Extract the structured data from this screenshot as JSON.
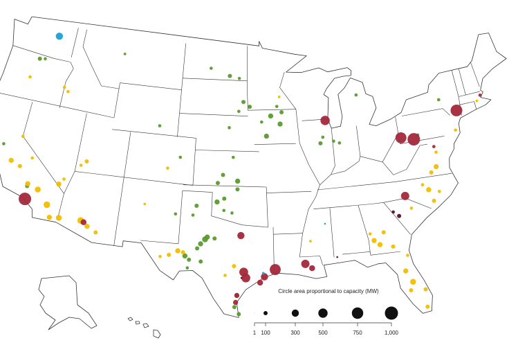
{
  "map": {
    "legend": {
      "title": "Circle area proportional to capacity (MW)",
      "sizes": [
        1,
        100,
        300,
        500,
        750,
        {
          "value": 1000,
          "label": "1,000"
        }
      ]
    },
    "series": [
      {
        "color": "#5b9a2f",
        "lon": [
          -120.5,
          -119.9,
          -111,
          -100.8,
          -98.6,
          -97.5,
          -97,
          -97.5,
          -96.3,
          -93.3,
          -94,
          -93,
          -94.5,
          -92.8,
          -95,
          -98.5,
          -98,
          -99,
          -97.5,
          -99.5,
          -98.8,
          -99.5,
          -97.5,
          -98.8,
          -98,
          -101.5,
          -101.8,
          -100.5,
          -100.9,
          -100.3,
          -99.6,
          -101.2,
          -102.3,
          -101.9,
          -100.8,
          -102,
          -97.6,
          -97.4,
          -97.2,
          -88.8,
          -88.5,
          -87.4,
          -86.8,
          -84.4,
          -106,
          -103.5,
          -118.3,
          -121.7,
          -78.5,
          -75.5,
          -103.5
        ],
        "lat": [
          45.7,
          45.8,
          47.5,
          47,
          46.4,
          46.2,
          44.2,
          43.4,
          43.8,
          43.8,
          43,
          42.3,
          41.3,
          43.3,
          42.5,
          42,
          39.5,
          38,
          37.5,
          37.3,
          36,
          35.7,
          36.8,
          35,
          34.8,
          35.3,
          34.5,
          32.5,
          32.1,
          32.7,
          32.6,
          31.7,
          31,
          30.7,
          30.6,
          30,
          26.8,
          27.8,
          26.2,
          40.5,
          41,
          40.6,
          40.4,
          44.3,
          41.8,
          39.3,
          35,
          38,
          40.2,
          42.8,
          34.5
        ],
        "capacity": [
          100,
          60,
          40,
          60,
          100,
          60,
          100,
          60,
          100,
          60,
          150,
          150,
          150,
          100,
          60,
          60,
          60,
          100,
          150,
          100,
          100,
          150,
          100,
          60,
          60,
          100,
          60,
          200,
          150,
          150,
          100,
          100,
          150,
          100,
          100,
          60,
          100,
          100,
          100,
          100,
          60,
          60,
          60,
          60,
          60,
          60,
          100,
          60,
          60,
          60,
          60
        ]
      },
      {
        "color": "#f2bd00",
        "lon": [
          -120.5,
          -119.5,
          -118.3,
          -117.2,
          -116,
          -115.5,
          -120,
          -118.5,
          -115.3,
          -114.9,
          -114.6,
          -112.5,
          -111.8,
          -110.9,
          -113,
          -113.5,
          -106.6,
          -103,
          -102.5,
          -103.8,
          -104.6,
          -78.5,
          -79,
          -77.5,
          -78.2,
          -80.5,
          -84,
          -84.5,
          -83.5,
          -84.8,
          -82.8,
          -82,
          -81.5,
          -81.8,
          -80.5,
          -80.6,
          -81.6,
          -77.3,
          -77.9,
          -77,
          -74.5,
          -71.5,
          -93,
          -121,
          -117,
          -116.5,
          -104.7,
          -97.7,
          -98.5,
          -90.5
        ],
        "lat": [
          36.8,
          36.5,
          35.2,
          34.9,
          33.8,
          32.8,
          39,
          37.4,
          35.7,
          36.2,
          32.9,
          33,
          32.6,
          32.2,
          38,
          37.6,
          35.1,
          31.4,
          31.3,
          31,
          30.8,
          35.5,
          36,
          35.2,
          34.5,
          34.2,
          31.5,
          31.9,
          32.5,
          32.5,
          31.2,
          29,
          28,
          27.3,
          27.2,
          25.7,
          30.3,
          37.3,
          36.9,
          38.5,
          40,
          42,
          44.6,
          44,
          43.8,
          43.5,
          38.3,
          30.3,
          29.5,
          32.3
        ],
        "capacity": [
          150,
          100,
          150,
          200,
          250,
          150,
          60,
          60,
          150,
          60,
          200,
          250,
          150,
          100,
          100,
          60,
          40,
          150,
          100,
          100,
          60,
          150,
          60,
          60,
          100,
          60,
          150,
          150,
          100,
          60,
          100,
          150,
          200,
          100,
          100,
          100,
          60,
          150,
          100,
          60,
          60,
          40,
          40,
          60,
          60,
          60,
          60,
          100,
          60,
          40
        ]
      },
      {
        "color": "#a3283a",
        "lon": [
          -118.2,
          -112.2,
          -97.1,
          -93.9,
          -96.8,
          -96.6,
          -94.9,
          -95.3,
          -97.4,
          -97.5,
          -91.1,
          -90.5,
          -88.1,
          -80.3,
          -79,
          -73.9,
          -80.9,
          -77.1,
          -71
        ],
        "lat": [
          33.9,
          32.9,
          32.9,
          30,
          29.8,
          29.3,
          29.4,
          28.9,
          27.8,
          27.2,
          30.4,
          30,
          42.4,
          40.2,
          39.9,
          41.6,
          35.3,
          39,
          42.4
        ],
        "capacity": [
          900,
          200,
          300,
          700,
          450,
          450,
          300,
          200,
          150,
          150,
          400,
          200,
          500,
          700,
          900,
          800,
          400,
          60,
          60
        ]
      },
      {
        "color": "#1fa0d0",
        "lon": [
          -119,
          -95,
          -89
        ],
        "lat": [
          47.95,
          29.7,
          33.7
        ],
        "capacity": [
          300,
          40,
          20
        ]
      },
      {
        "color": "#5a1020",
        "lon": [
          -81.8,
          -82.3,
          -88.1,
          -97
        ],
        "lat": [
          33.7,
          34.1,
          30.8,
          29.3
        ],
        "capacity": [
          100,
          60,
          20,
          20
        ]
      }
    ]
  }
}
